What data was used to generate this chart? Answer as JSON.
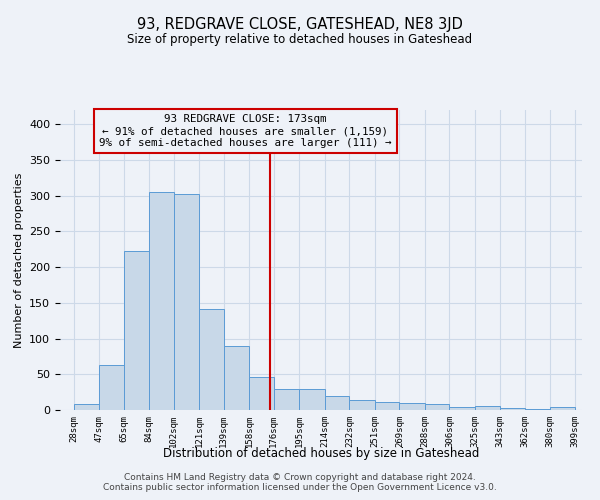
{
  "title": "93, REDGRAVE CLOSE, GATESHEAD, NE8 3JD",
  "subtitle": "Size of property relative to detached houses in Gateshead",
  "xlabel": "Distribution of detached houses by size in Gateshead",
  "ylabel": "Number of detached properties",
  "footer_line1": "Contains HM Land Registry data © Crown copyright and database right 2024.",
  "footer_line2": "Contains public sector information licensed under the Open Government Licence v3.0.",
  "bar_edges": [
    28,
    47,
    65,
    84,
    102,
    121,
    139,
    158,
    176,
    195,
    214,
    232,
    251,
    269,
    288,
    306,
    325,
    343,
    362,
    380,
    399
  ],
  "bar_heights": [
    8,
    63,
    222,
    305,
    303,
    141,
    90,
    46,
    30,
    30,
    19,
    14,
    11,
    10,
    9,
    4,
    5,
    3,
    2,
    4
  ],
  "bar_color": "#c8d8e8",
  "bar_edge_color": "#5b9bd5",
  "grid_color": "#cdd9e8",
  "bg_color": "#eef2f8",
  "vline_x": 173,
  "vline_color": "#cc0000",
  "annotation_text": "93 REDGRAVE CLOSE: 173sqm\n← 91% of detached houses are smaller (1,159)\n9% of semi-detached houses are larger (111) →",
  "annotation_box_color": "#cc0000",
  "ylim": [
    0,
    420
  ],
  "xlim_min": 18,
  "xlim_max": 404,
  "title_fontsize": 10.5,
  "subtitle_fontsize": 8.5
}
